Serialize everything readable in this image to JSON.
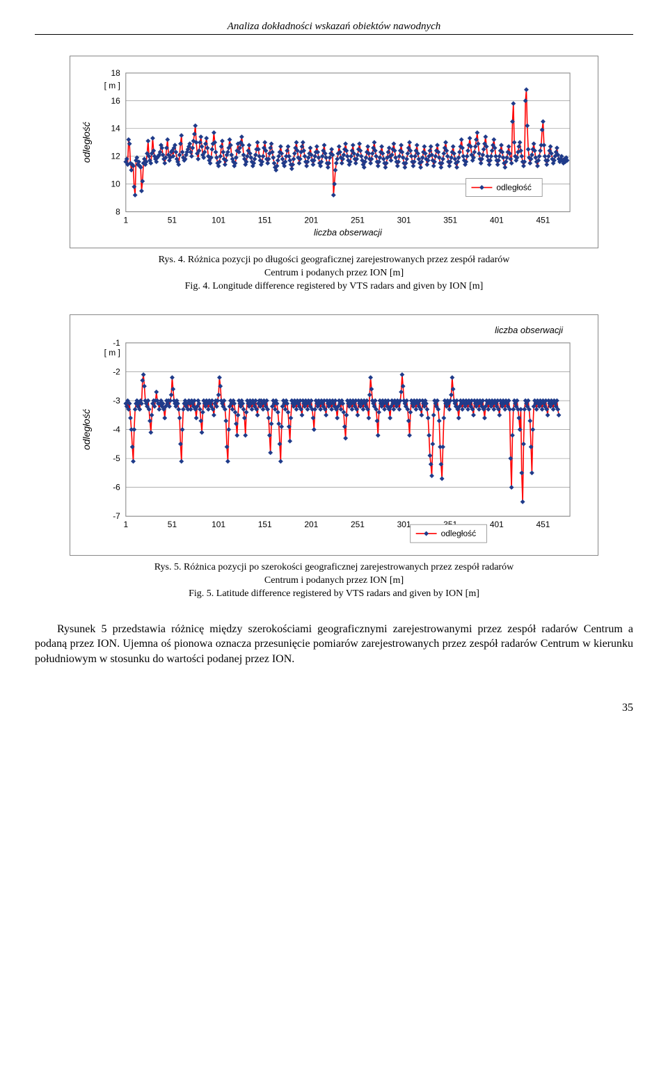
{
  "header": "Analiza dokładności wskazań obiektów nawodnych",
  "chart1": {
    "type": "line-scatter",
    "y_unit": "[ m ]",
    "ylabel": "odległość",
    "xlabel": "liczba obserwacji",
    "legend_label": "odległość",
    "x_ticks": [
      1,
      51,
      101,
      151,
      201,
      251,
      301,
      351,
      401,
      451
    ],
    "y_ticks": [
      8,
      10,
      12,
      14,
      16,
      18
    ],
    "ylim": [
      8,
      18
    ],
    "xlim": [
      1,
      480
    ],
    "line_color": "#ff0000",
    "marker_color": "#1f3b8a",
    "grid_color": "#808080",
    "background": "#ffffff",
    "values": [
      11.6,
      11.8,
      11.4,
      13.2,
      12.9,
      11.5,
      11.0,
      11.4,
      11.3,
      9.8,
      9.2,
      11.7,
      11.9,
      11.4,
      11.6,
      11.3,
      11.2,
      9.5,
      10.2,
      11.5,
      11.8,
      11.4,
      11.6,
      12.2,
      13.1,
      12.0,
      11.7,
      11.5,
      12.2,
      13.3,
      12.4,
      12.0,
      11.8,
      11.6,
      11.9,
      12.0,
      12.1,
      12.3,
      12.8,
      12.6,
      12.1,
      11.8,
      11.5,
      11.9,
      12.6,
      13.2,
      12.1,
      11.7,
      11.9,
      12.3,
      12.4,
      12.0,
      12.6,
      12.8,
      12.3,
      11.8,
      11.6,
      11.4,
      12.1,
      12.9,
      13.5,
      12.3,
      11.9,
      11.7,
      11.8,
      12.1,
      12.3,
      12.5,
      12.7,
      12.9,
      12.3,
      12.0,
      12.6,
      13.1,
      13.6,
      14.2,
      13.0,
      12.2,
      11.8,
      12.4,
      13.0,
      13.4,
      12.7,
      12.1,
      11.9,
      12.3,
      12.9,
      13.3,
      12.6,
      12.0,
      11.7,
      11.5,
      11.9,
      12.5,
      12.9,
      13.7,
      13.0,
      12.3,
      11.9,
      11.5,
      11.3,
      11.6,
      12.0,
      12.7,
      13.1,
      12.3,
      11.8,
      11.4,
      11.7,
      12.1,
      12.3,
      12.6,
      13.2,
      12.8,
      12.1,
      11.8,
      11.6,
      11.3,
      11.5,
      11.9,
      12.4,
      12.9,
      12.3,
      12.6,
      13.0,
      13.4,
      12.8,
      12.1,
      11.8,
      11.4,
      11.6,
      12.0,
      12.4,
      12.8,
      12.2,
      11.9,
      11.6,
      11.3,
      11.5,
      11.8,
      12.1,
      12.5,
      13.0,
      12.5,
      12.0,
      11.7,
      11.4,
      11.6,
      12.0,
      12.6,
      13.0,
      12.4,
      11.8,
      11.5,
      11.8,
      12.2,
      12.6,
      12.9,
      12.3,
      11.9,
      11.5,
      11.2,
      11.0,
      11.3,
      11.7,
      12.0,
      12.3,
      12.7,
      12.2,
      11.8,
      11.5,
      11.3,
      11.6,
      12.0,
      12.4,
      12.7,
      12.0,
      11.7,
      11.4,
      11.1,
      11.4,
      11.8,
      12.2,
      12.6,
      13.0,
      12.4,
      11.9,
      11.5,
      11.8,
      12.3,
      12.7,
      13.0,
      12.4,
      12.0,
      11.6,
      11.3,
      11.6,
      11.9,
      12.2,
      12.6,
      12.1,
      11.7,
      11.4,
      11.7,
      12.0,
      12.3,
      12.7,
      12.3,
      11.9,
      11.5,
      11.3,
      11.6,
      12.0,
      12.4,
      12.8,
      12.2,
      11.9,
      11.5,
      11.2,
      11.5,
      11.9,
      12.2,
      12.5,
      12.1,
      9.2,
      10.0,
      11.0,
      11.5,
      11.8,
      12.2,
      12.7,
      12.3,
      11.9,
      11.5,
      11.8,
      12.1,
      12.5,
      12.9,
      12.4,
      12.0,
      11.7,
      11.4,
      11.6,
      12.0,
      12.4,
      12.8,
      12.2,
      11.8,
      11.5,
      11.8,
      12.1,
      12.5,
      12.9,
      12.4,
      12.0,
      11.7,
      11.4,
      11.2,
      11.6,
      11.9,
      12.3,
      12.7,
      12.2,
      11.8,
      11.5,
      11.8,
      12.2,
      12.6,
      13.0,
      12.4,
      12.0,
      11.6,
      11.3,
      11.6,
      11.9,
      12.3,
      12.7,
      12.2,
      11.8,
      11.5,
      11.2,
      11.5,
      11.9,
      12.3,
      12.6,
      12.0,
      11.7,
      12.1,
      12.5,
      12.9,
      12.4,
      11.9,
      11.6,
      11.3,
      11.6,
      12.0,
      12.4,
      12.8,
      12.3,
      11.9,
      11.5,
      11.2,
      11.5,
      11.8,
      12.2,
      12.6,
      13.0,
      12.4,
      12.0,
      11.6,
      11.3,
      11.6,
      12.0,
      12.4,
      12.8,
      12.2,
      11.8,
      11.5,
      11.2,
      11.6,
      11.9,
      12.3,
      12.7,
      12.2,
      11.8,
      11.4,
      11.7,
      12.0,
      12.4,
      12.7,
      12.1,
      11.7,
      11.3,
      11.6,
      12.0,
      12.4,
      12.8,
      12.3,
      11.9,
      11.5,
      11.2,
      11.5,
      11.8,
      12.2,
      12.6,
      13.0,
      12.4,
      12.0,
      11.6,
      11.3,
      11.6,
      11.9,
      12.3,
      12.7,
      12.2,
      11.8,
      11.5,
      11.2,
      11.6,
      11.9,
      12.3,
      12.7,
      13.2,
      12.6,
      12.0,
      11.7,
      11.4,
      11.6,
      12.0,
      12.4,
      12.8,
      13.3,
      12.7,
      12.1,
      11.7,
      11.9,
      12.3,
      12.7,
      13.2,
      13.7,
      12.9,
      12.2,
      11.8,
      11.5,
      11.8,
      12.1,
      12.5,
      12.9,
      13.4,
      12.7,
      12.0,
      11.7,
      11.4,
      11.7,
      12.0,
      12.4,
      12.8,
      13.2,
      12.6,
      12.0,
      11.7,
      11.4,
      11.7,
      12.0,
      12.4,
      12.8,
      12.3,
      11.9,
      11.5,
      11.2,
      11.6,
      11.9,
      12.3,
      12.7,
      12.2,
      11.8,
      11.5,
      14.5,
      15.8,
      13.0,
      12.0,
      11.7,
      11.9,
      12.3,
      12.7,
      13.0,
      12.4,
      12.0,
      11.6,
      11.3,
      11.6,
      16.0,
      16.8,
      14.2,
      12.5,
      11.9,
      11.5,
      11.8,
      12.1,
      12.5,
      12.9,
      12.4,
      11.9,
      11.6,
      11.3,
      11.7,
      12.0,
      12.4,
      12.8,
      13.9,
      14.5,
      12.8,
      12.0,
      11.7,
      11.4,
      11.7,
      12.0,
      12.4,
      12.7,
      12.2,
      11.8,
      11.5,
      11.7,
      12.0,
      12.3,
      12.6,
      12.1,
      11.8,
      11.6,
      11.8,
      12.0,
      11.7,
      11.5,
      11.8,
      11.6,
      11.9,
      11.7
    ]
  },
  "caption1": {
    "line1": "Rys. 4. Różnica pozycji po długości geograficznej zarejestrowanych przez zespół radarów",
    "line2": "Centrum i podanych przez ION [m]",
    "line3": "Fig. 4. Longitude difference registered by VTS radars and given by ION [m]"
  },
  "chart2": {
    "type": "line-scatter",
    "y_unit": "[ m ]",
    "ylabel": "odległość",
    "xlabel": "liczba obserwacji",
    "legend_label": "odległość",
    "x_ticks": [
      1,
      51,
      101,
      151,
      201,
      251,
      301,
      351,
      401,
      451
    ],
    "y_ticks": [
      -7,
      -6,
      -5,
      -4,
      -3,
      -2,
      -1
    ],
    "ylim": [
      -7,
      -1
    ],
    "xlim": [
      1,
      480
    ],
    "line_color": "#ff0000",
    "marker_color": "#1f3b8a",
    "grid_color": "#808080",
    "background": "#ffffff",
    "values": [
      -3.1,
      -3.2,
      -3.0,
      -3.3,
      -3.1,
      -3.6,
      -4.0,
      -4.6,
      -5.1,
      -4.0,
      -3.3,
      -3.1,
      -3.0,
      -3.2,
      -3.1,
      -3.3,
      -3.0,
      -3.1,
      -2.3,
      -2.1,
      -2.5,
      -3.0,
      -3.1,
      -3.2,
      -3.0,
      -3.3,
      -3.7,
      -4.1,
      -3.5,
      -3.1,
      -3.0,
      -3.2,
      -3.0,
      -2.7,
      -3.0,
      -3.1,
      -3.3,
      -3.1,
      -3.0,
      -3.2,
      -3.1,
      -3.3,
      -3.6,
      -3.2,
      -3.0,
      -3.1,
      -3.0,
      -3.2,
      -3.0,
      -2.8,
      -2.2,
      -2.6,
      -3.0,
      -3.1,
      -3.2,
      -3.0,
      -3.1,
      -3.3,
      -3.6,
      -4.5,
      -5.1,
      -4.0,
      -3.3,
      -3.1,
      -3.0,
      -3.2,
      -3.1,
      -3.3,
      -3.0,
      -3.1,
      -3.3,
      -3.0,
      -3.1,
      -3.2,
      -3.0,
      -3.3,
      -3.6,
      -3.2,
      -3.0,
      -3.1,
      -3.3,
      -3.7,
      -4.1,
      -3.4,
      -3.0,
      -3.1,
      -3.2,
      -3.0,
      -3.1,
      -3.3,
      -3.0,
      -3.1,
      -3.2,
      -3.0,
      -3.3,
      -3.5,
      -3.1,
      -3.0,
      -3.2,
      -3.0,
      -2.8,
      -2.2,
      -2.5,
      -3.0,
      -3.1,
      -3.2,
      -3.0,
      -3.3,
      -3.7,
      -4.6,
      -5.1,
      -4.0,
      -3.2,
      -3.0,
      -3.1,
      -3.3,
      -3.0,
      -3.1,
      -3.4,
      -3.8,
      -4.2,
      -3.5,
      -3.0,
      -3.1,
      -3.2,
      -3.0,
      -3.1,
      -3.3,
      -3.6,
      -4.2,
      -3.4,
      -3.0,
      -3.1,
      -3.2,
      -3.0,
      -3.1,
      -3.3,
      -3.0,
      -3.1,
      -3.2,
      -3.0,
      -3.3,
      -3.5,
      -3.1,
      -3.0,
      -3.2,
      -3.0,
      -3.1,
      -3.3,
      -3.0,
      -3.1,
      -3.2,
      -3.0,
      -3.3,
      -3.6,
      -4.2,
      -4.8,
      -3.8,
      -3.2,
      -3.0,
      -3.1,
      -3.3,
      -3.0,
      -3.1,
      -3.4,
      -3.8,
      -4.5,
      -5.1,
      -3.9,
      -3.2,
      -3.0,
      -3.1,
      -3.3,
      -3.0,
      -3.1,
      -3.4,
      -3.9,
      -4.4,
      -3.6,
      -3.0,
      -3.1,
      -3.2,
      -3.0,
      -3.1,
      -3.3,
      -3.0,
      -3.1,
      -3.2,
      -3.0,
      -3.3,
      -3.5,
      -3.0,
      -3.1,
      -3.2,
      -3.0,
      -3.1,
      -3.3,
      -3.0,
      -3.1,
      -3.2,
      -3.0,
      -3.3,
      -3.6,
      -4.0,
      -3.3,
      -3.0,
      -3.1,
      -3.2,
      -3.0,
      -3.1,
      -3.3,
      -3.0,
      -3.1,
      -3.2,
      -3.0,
      -3.3,
      -3.5,
      -3.0,
      -3.1,
      -3.2,
      -3.0,
      -3.1,
      -3.3,
      -3.0,
      -3.1,
      -3.2,
      -3.0,
      -3.3,
      -3.6,
      -3.2,
      -3.0,
      -3.1,
      -3.3,
      -3.0,
      -3.1,
      -3.4,
      -3.9,
      -4.3,
      -3.5,
      -3.0,
      -3.1,
      -3.2,
      -3.0,
      -3.1,
      -3.3,
      -3.0,
      -3.1,
      -3.2,
      -3.0,
      -3.3,
      -3.5,
      -3.0,
      -3.1,
      -3.2,
      -3.0,
      -3.1,
      -3.3,
      -3.0,
      -3.1,
      -3.2,
      -3.0,
      -3.3,
      -3.6,
      -2.8,
      -2.2,
      -2.6,
      -3.0,
      -3.1,
      -3.2,
      -3.0,
      -3.3,
      -3.7,
      -4.2,
      -3.4,
      -3.0,
      -3.1,
      -3.2,
      -3.0,
      -3.1,
      -3.3,
      -3.0,
      -3.1,
      -3.2,
      -3.0,
      -3.3,
      -3.6,
      -3.2,
      -3.0,
      -3.1,
      -3.3,
      -3.0,
      -3.1,
      -3.2,
      -3.0,
      -3.1,
      -3.3,
      -3.0,
      -2.7,
      -2.1,
      -2.5,
      -3.0,
      -3.1,
      -3.2,
      -3.0,
      -3.3,
      -3.7,
      -4.2,
      -3.4,
      -3.0,
      -3.1,
      -3.2,
      -3.0,
      -3.1,
      -3.3,
      -3.0,
      -3.1,
      -3.2,
      -3.0,
      -3.3,
      -3.5,
      -3.0,
      -3.1,
      -3.2,
      -3.0,
      -3.1,
      -3.3,
      -3.6,
      -4.2,
      -4.9,
      -5.2,
      -5.6,
      -4.5,
      -3.5,
      -3.0,
      -3.1,
      -3.2,
      -3.0,
      -3.3,
      -3.7,
      -4.6,
      -5.2,
      -5.7,
      -4.6,
      -3.6,
      -3.0,
      -3.1,
      -3.2,
      -3.0,
      -3.1,
      -3.3,
      -3.0,
      -2.8,
      -2.2,
      -2.6,
      -3.0,
      -3.1,
      -3.2,
      -3.0,
      -3.3,
      -3.6,
      -3.2,
      -3.0,
      -3.1,
      -3.3,
      -3.0,
      -3.1,
      -3.2,
      -3.0,
      -3.1,
      -3.3,
      -3.0,
      -3.1,
      -3.2,
      -3.0,
      -3.3,
      -3.5,
      -3.0,
      -3.1,
      -3.2,
      -3.0,
      -3.1,
      -3.3,
      -3.0,
      -3.1,
      -3.2,
      -3.0,
      -3.3,
      -3.6,
      -3.2,
      -3.0,
      -3.1,
      -3.3,
      -3.0,
      -3.1,
      -3.2,
      -3.0,
      -3.1,
      -3.3,
      -3.0,
      -3.1,
      -3.2,
      -3.0,
      -3.3,
      -3.5,
      -3.0,
      -3.1,
      -3.2,
      -3.0,
      -3.1,
      -3.3,
      -3.0,
      -3.1,
      -3.2,
      -3.0,
      -3.3,
      -5.0,
      -6.0,
      -4.2,
      -3.3,
      -3.0,
      -3.1,
      -3.2,
      -3.0,
      -3.3,
      -3.6,
      -4.0,
      -3.3,
      -5.5,
      -6.5,
      -4.5,
      -3.3,
      -3.0,
      -3.1,
      -3.2,
      -3.0,
      -3.3,
      -3.7,
      -4.6,
      -5.5,
      -4.0,
      -3.2,
      -3.0,
      -3.1,
      -3.3,
      -3.0,
      -3.1,
      -3.2,
      -3.0,
      -3.1,
      -3.3,
      -3.0,
      -3.1,
      -3.2,
      -3.0,
      -3.3,
      -3.5,
      -3.0,
      -3.1,
      -3.2,
      -3.0,
      -3.1,
      -3.3,
      -3.0,
      -3.1,
      -3.2,
      -3.0,
      -3.3,
      -3.5
    ]
  },
  "caption2": {
    "line1": "Rys. 5. Różnica pozycji po szerokości geograficznej zarejestrowanych przez zespół radarów",
    "line2": "Centrum i podanych przez ION [m]",
    "line3": "Fig. 5. Latitude difference registered by VTS radars and given by ION [m]"
  },
  "paragraph": "Rysunek 5 przedstawia różnicę między szerokościami geograficznymi zarejestrowanymi przez zespół radarów Centrum a podaną przez ION. Ujemna oś pionowa oznacza przesunięcie pomiarów zarejestrowanych przez zespół radarów Centrum w kierunku południowym w stosunku do wartości podanej przez ION.",
  "page_number": "35"
}
